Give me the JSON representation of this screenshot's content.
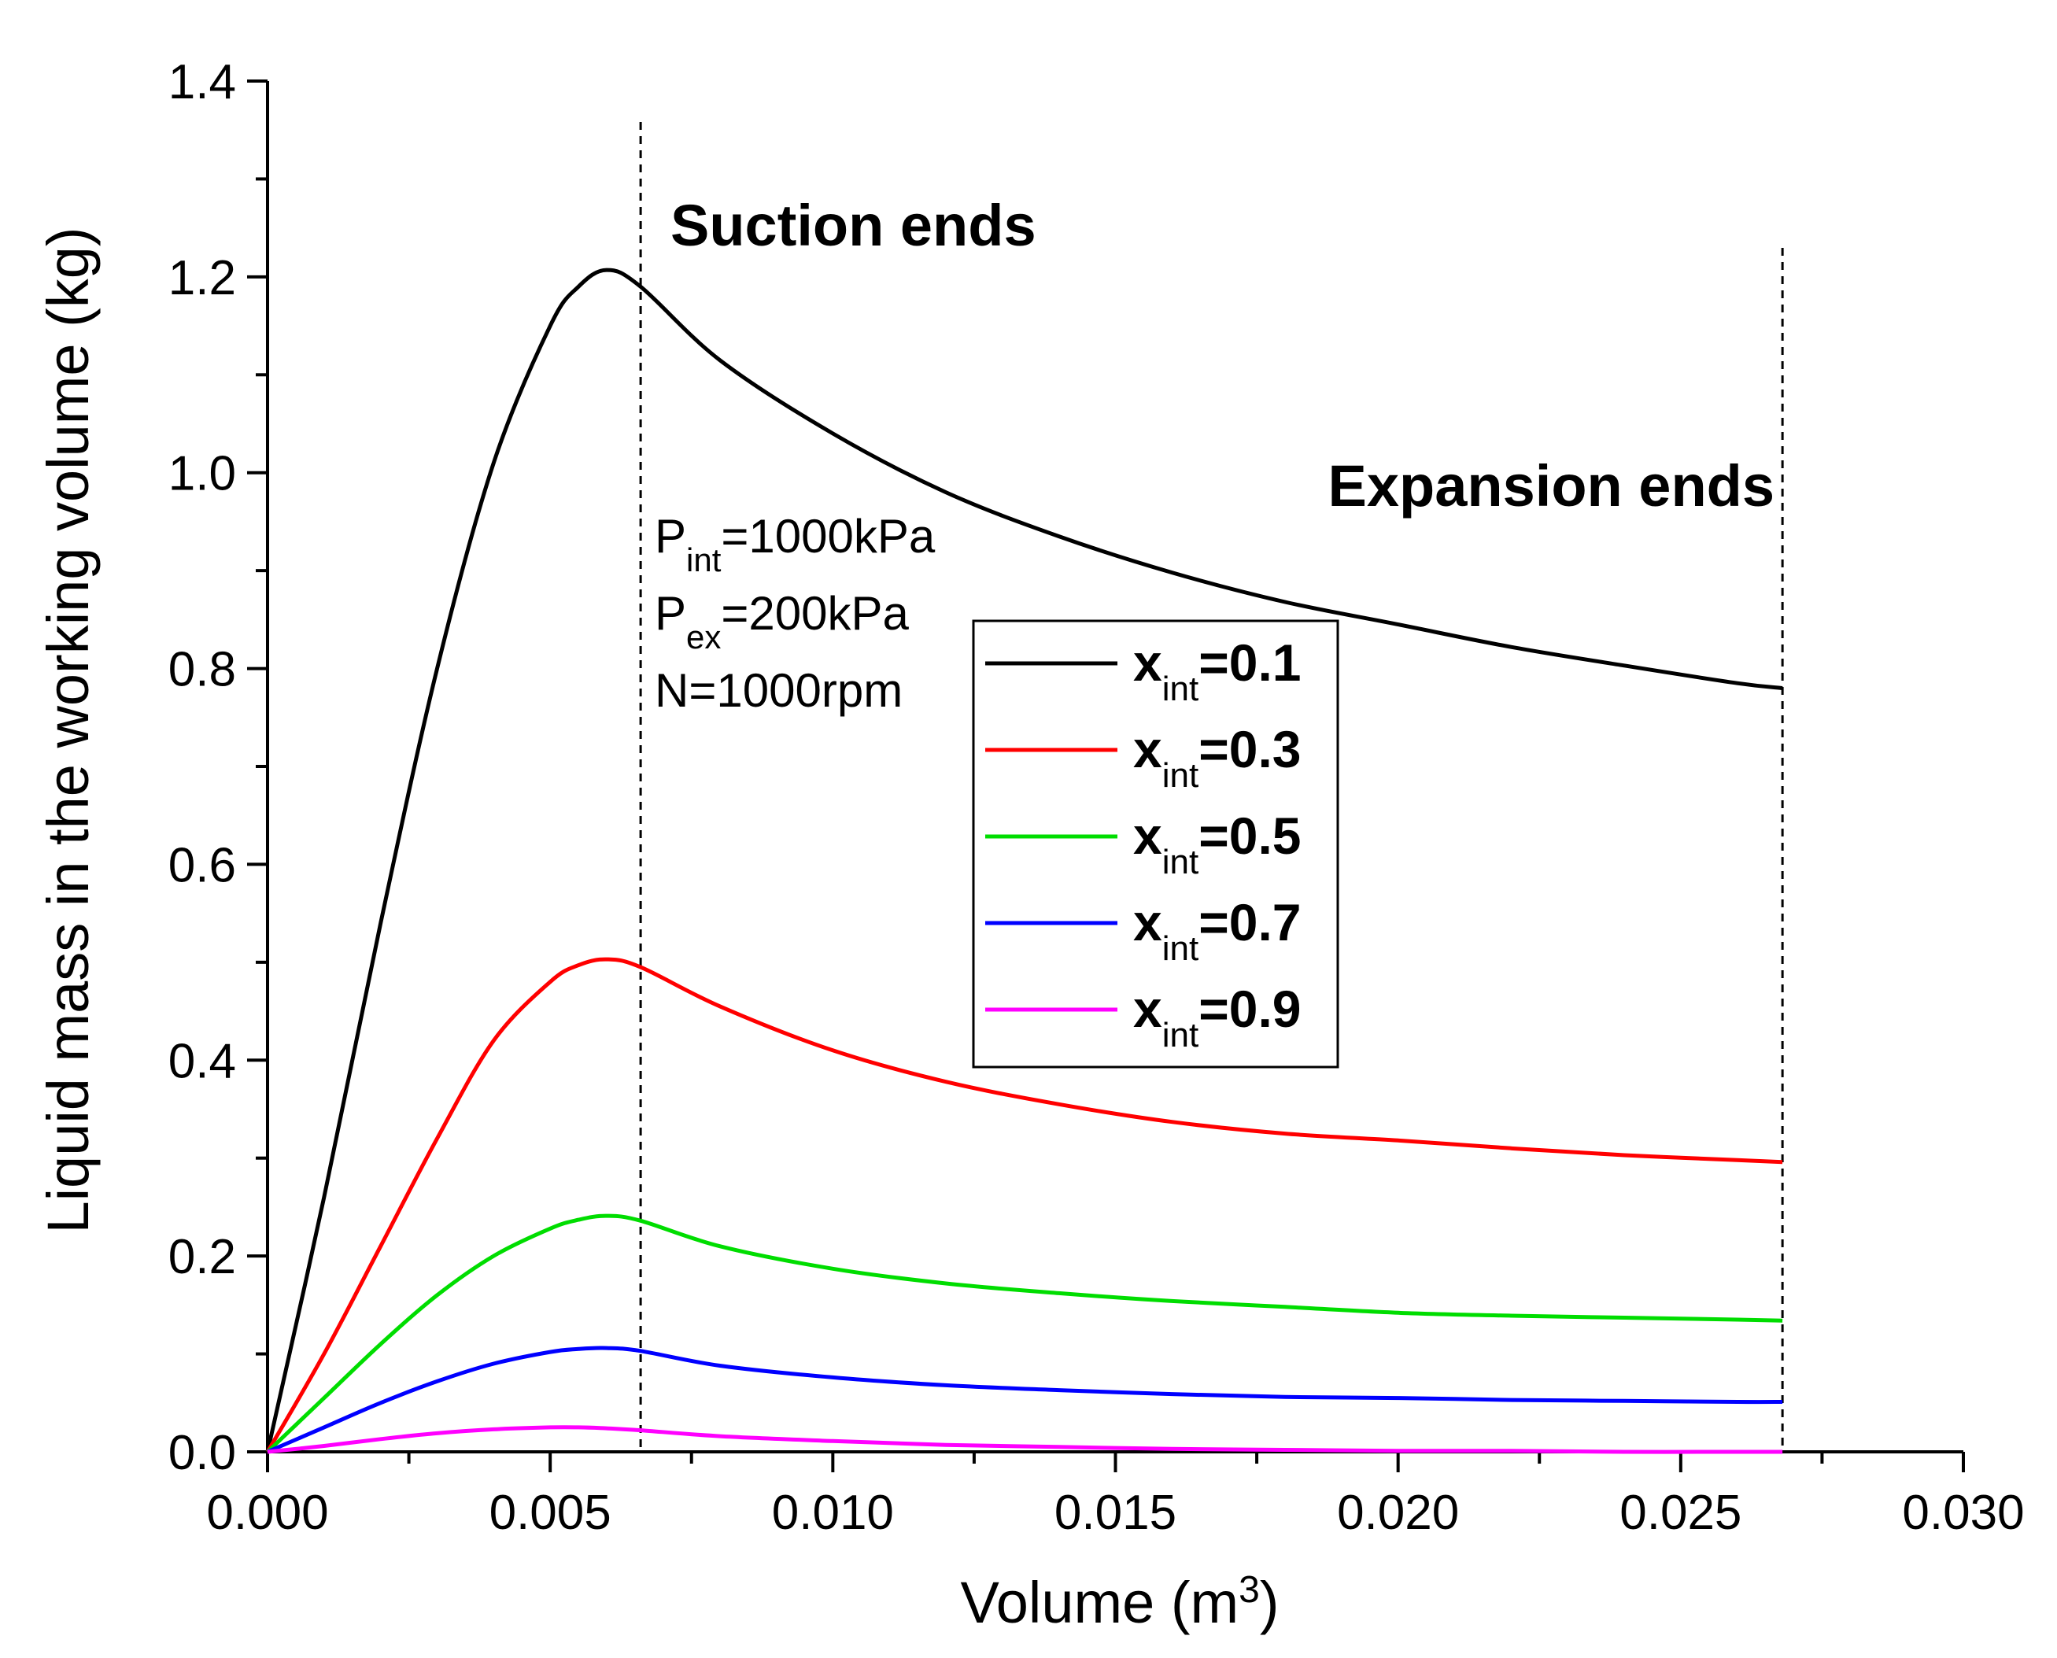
{
  "chart_data": {
    "type": "line",
    "xlabel": "Volume (m",
    "xlabel_sup": "3",
    "xlabel_end": ")",
    "ylabel": "Liquid mass in the working volume (kg)",
    "xlim": [
      0.0,
      0.03
    ],
    "ylim": [
      0.0,
      1.4
    ],
    "x_ticks": [
      "0.000",
      "0.005",
      "0.010",
      "0.015",
      "0.020",
      "0.025",
      "0.030"
    ],
    "y_ticks": [
      "0.0",
      "0.2",
      "0.4",
      "0.6",
      "0.8",
      "1.0",
      "1.2",
      "1.4"
    ],
    "vlines": [
      {
        "x": 0.0066,
        "label": "Suction ends"
      },
      {
        "x": 0.0268,
        "label": "Expansion ends"
      }
    ],
    "parameters": [
      {
        "base": "P",
        "sub": "int",
        "rest": "=1000kPa"
      },
      {
        "base": "P",
        "sub": "ex",
        "rest": "=200kPa"
      },
      {
        "base": "N=1000rpm",
        "sub": "",
        "rest": ""
      }
    ],
    "x": [
      0.0,
      0.001,
      0.002,
      0.003,
      0.004,
      0.005,
      0.0055,
      0.006,
      0.0066,
      0.008,
      0.01,
      0.012,
      0.014,
      0.016,
      0.018,
      0.02,
      0.022,
      0.024,
      0.026,
      0.0268
    ],
    "series": [
      {
        "name": "x",
        "sub": "int",
        "value": "=0.1",
        "color": "#000000",
        "values": [
          0.0,
          0.26,
          0.54,
          0.8,
          1.01,
          1.15,
          1.19,
          1.207,
          1.19,
          1.115,
          1.04,
          0.98,
          0.935,
          0.898,
          0.868,
          0.845,
          0.822,
          0.803,
          0.785,
          0.78
        ]
      },
      {
        "name": "x",
        "sub": "int",
        "value": "=0.3",
        "color": "#ff0000",
        "values": [
          0.0,
          0.1,
          0.21,
          0.32,
          0.42,
          0.48,
          0.497,
          0.503,
          0.495,
          0.455,
          0.41,
          0.378,
          0.355,
          0.337,
          0.325,
          0.318,
          0.31,
          0.303,
          0.298,
          0.296
        ]
      },
      {
        "name": "x",
        "sub": "int",
        "value": "=0.5",
        "color": "#00dd00",
        "values": [
          0.0,
          0.055,
          0.11,
          0.16,
          0.2,
          0.228,
          0.237,
          0.241,
          0.236,
          0.21,
          0.187,
          0.172,
          0.162,
          0.154,
          0.148,
          0.142,
          0.139,
          0.137,
          0.135,
          0.134
        ]
      },
      {
        "name": "x",
        "sub": "int",
        "value": "=0.7",
        "color": "#0000ff",
        "values": [
          0.0,
          0.025,
          0.05,
          0.072,
          0.09,
          0.102,
          0.105,
          0.106,
          0.103,
          0.088,
          0.076,
          0.068,
          0.063,
          0.059,
          0.056,
          0.055,
          0.053,
          0.052,
          0.051,
          0.051
        ]
      },
      {
        "name": "x",
        "sub": "int",
        "value": "=0.9",
        "color": "#ff00ff",
        "values": [
          0.0,
          0.006,
          0.013,
          0.019,
          0.023,
          0.025,
          0.025,
          0.024,
          0.022,
          0.016,
          0.011,
          0.007,
          0.005,
          0.003,
          0.002,
          0.001,
          0.001,
          0.0,
          0.0,
          0.0
        ]
      }
    ]
  }
}
